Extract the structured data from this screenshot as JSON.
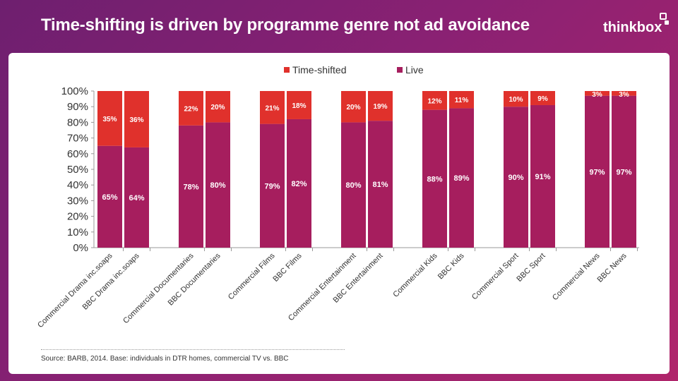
{
  "header": {
    "title": "Time-shifting is driven by programme genre not ad avoidance",
    "logo_text": "thinkbox"
  },
  "footer": {
    "source": "Source: BARB, 2014.  Base: individuals in DTR homes, commercial TV vs. BBC"
  },
  "colors": {
    "time_shifted": "#e0312c",
    "live": "#a61e5e",
    "background_start": "#6e1f6f",
    "background_end": "#b0256b"
  },
  "chart_data": {
    "type": "bar",
    "stacked": true,
    "title": "",
    "xlabel": "",
    "ylabel": "",
    "ylim": [
      0,
      100
    ],
    "yticks": [
      "0%",
      "10%",
      "20%",
      "30%",
      "40%",
      "50%",
      "60%",
      "70%",
      "80%",
      "90%",
      "100%"
    ],
    "legend_position": "top",
    "categories": [
      "Commercial Drama inc.soaps",
      "BBC Drama inc.soaps",
      "Commercial Documentaries",
      "BBC Documentaries",
      "Commercial Films",
      "BBC Films",
      "Commercial Entertainment",
      "BBC Entertainment",
      "Commercial Kids",
      "BBC Kids",
      "Commercial Sport",
      "BBC Sport",
      "Commercial News",
      "BBC News"
    ],
    "series": [
      {
        "name": "Live",
        "values": [
          65,
          64,
          78,
          80,
          79,
          82,
          80,
          81,
          88,
          89,
          90,
          91,
          97,
          97
        ],
        "labels": [
          "65%",
          "64%",
          "78%",
          "80%",
          "79%",
          "82%",
          "80%",
          "81%",
          "88%",
          "89%",
          "90%",
          "91%",
          "97%",
          "97%"
        ]
      },
      {
        "name": "Time-shifted",
        "values": [
          35,
          36,
          22,
          20,
          21,
          18,
          20,
          19,
          12,
          11,
          10,
          9,
          3,
          3
        ],
        "labels": [
          "35%",
          "36%",
          "22%",
          "20%",
          "21%",
          "18%",
          "20%",
          "19%",
          "12%",
          "11%",
          "10%",
          "9%",
          "3%",
          "3%"
        ]
      }
    ]
  }
}
